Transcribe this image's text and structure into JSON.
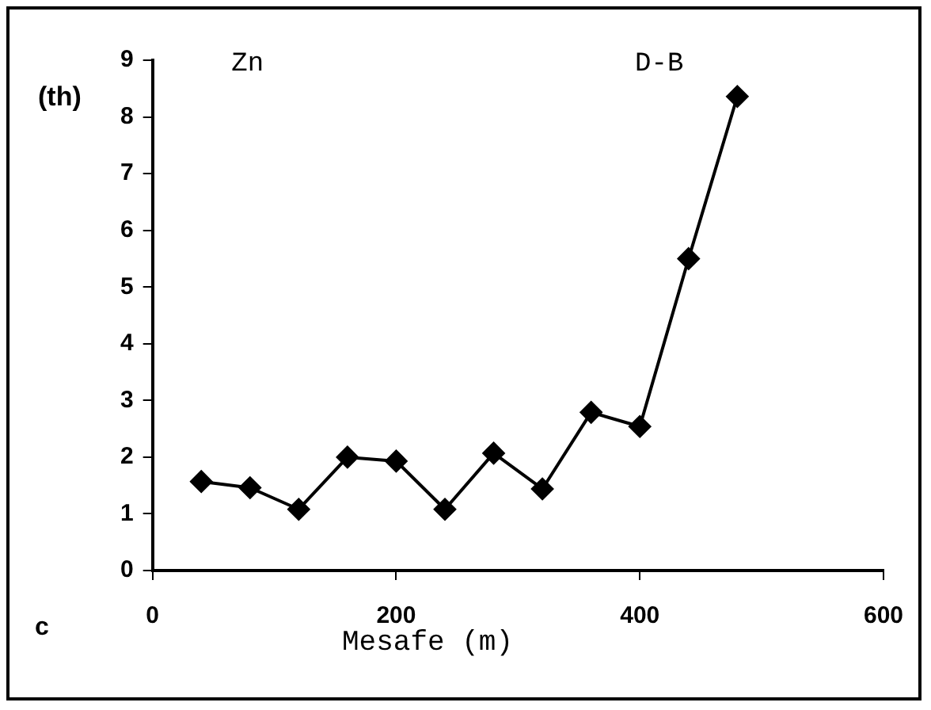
{
  "chart_data": {
    "type": "line",
    "ylabel": "(th)",
    "xlabel": "Mesafe (m)",
    "annotations": [
      "Zn",
      "D-B",
      "c"
    ],
    "x": [
      40,
      80,
      120,
      160,
      200,
      240,
      280,
      320,
      360,
      400,
      440,
      480
    ],
    "series": [
      {
        "color": "#000000",
        "values": [
          1.57,
          1.46,
          1.08,
          2.0,
          1.93,
          1.08,
          2.07,
          1.44,
          2.79,
          2.54,
          5.5,
          8.36
        ]
      }
    ],
    "xlim": [
      0,
      600
    ],
    "xticks": [
      0,
      200,
      400,
      600
    ],
    "ylim": [
      0,
      9
    ],
    "yticks": [
      0,
      1,
      2,
      3,
      4,
      5,
      6,
      7,
      8,
      9
    ],
    "grid": false,
    "legend": false,
    "marker": "diamond",
    "line_style": "solid"
  }
}
